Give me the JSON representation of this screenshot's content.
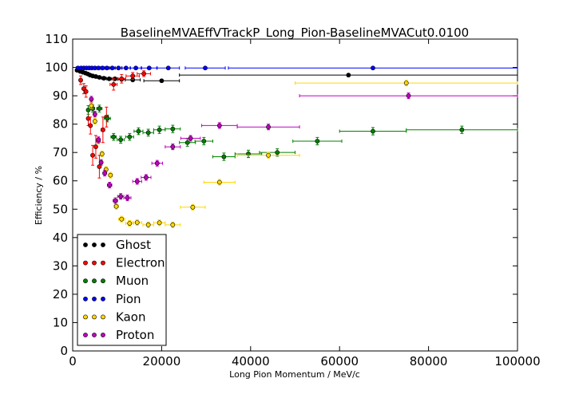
{
  "chart_data": {
    "type": "scatter",
    "title": "BaselineMVAEffVTrackP_Long_Pion-BaselineMVACut0.0100",
    "xlabel": "Long Pion Momentum / MeV/c",
    "ylabel": "Efficiency / %",
    "xlim": [
      0,
      100000
    ],
    "ylim": [
      0,
      110
    ],
    "x_ticks": [
      "0",
      "20000",
      "40000",
      "60000",
      "80000",
      "100000"
    ],
    "y_ticks": [
      "0",
      "10",
      "20",
      "30",
      "40",
      "50",
      "60",
      "70",
      "80",
      "90",
      "100",
      "110"
    ],
    "grid": false,
    "legend_position": "bottom-left",
    "series": [
      {
        "name": "Ghost",
        "color": "#000000",
        "points": [
          {
            "x": 1000,
            "y": 99,
            "xerr": 400,
            "yerr": 0.3
          },
          {
            "x": 1700,
            "y": 98.6,
            "xerr": 300,
            "yerr": 0.3
          },
          {
            "x": 2300,
            "y": 98.3,
            "xerr": 300,
            "yerr": 0.3
          },
          {
            "x": 2900,
            "y": 98,
            "xerr": 300,
            "yerr": 0.3
          },
          {
            "x": 3400,
            "y": 97.7,
            "xerr": 250,
            "yerr": 0.3
          },
          {
            "x": 3900,
            "y": 97.3,
            "xerr": 250,
            "yerr": 0.3
          },
          {
            "x": 4500,
            "y": 97,
            "xerr": 300,
            "yerr": 0.3
          },
          {
            "x": 5200,
            "y": 96.8,
            "xerr": 350,
            "yerr": 0.3
          },
          {
            "x": 6000,
            "y": 96.5,
            "xerr": 400,
            "yerr": 0.3
          },
          {
            "x": 7000,
            "y": 96.2,
            "xerr": 500,
            "yerr": 0.4
          },
          {
            "x": 8200,
            "y": 96,
            "xerr": 600,
            "yerr": 0.4
          },
          {
            "x": 9500,
            "y": 96,
            "xerr": 700,
            "yerr": 0.4
          },
          {
            "x": 11000,
            "y": 95.8,
            "xerr": 800,
            "yerr": 0.4
          },
          {
            "x": 13500,
            "y": 95.6,
            "xerr": 1700,
            "yerr": 0.5
          },
          {
            "x": 20000,
            "y": 95.3,
            "xerr": 4000,
            "yerr": 0.5
          },
          {
            "x": 62000,
            "y": 97.3,
            "xerr": 38000,
            "yerr": 0.5
          }
        ]
      },
      {
        "name": "Electron",
        "color": "#ff0000",
        "points": [
          {
            "x": 1800,
            "y": 95.5,
            "xerr": 300,
            "yerr": 1.5
          },
          {
            "x": 2500,
            "y": 92.5,
            "xerr": 300,
            "yerr": 1.8
          },
          {
            "x": 3000,
            "y": 91.5,
            "xerr": 250,
            "yerr": 2.0
          },
          {
            "x": 3500,
            "y": 82,
            "xerr": 250,
            "yerr": 2.5
          },
          {
            "x": 4000,
            "y": 79.5,
            "xerr": 250,
            "yerr": 3.0
          },
          {
            "x": 4500,
            "y": 69,
            "xerr": 250,
            "yerr": 3.5
          },
          {
            "x": 5200,
            "y": 72,
            "xerr": 300,
            "yerr": 4.0
          },
          {
            "x": 6000,
            "y": 65,
            "xerr": 350,
            "yerr": 4.0
          },
          {
            "x": 6800,
            "y": 78,
            "xerr": 400,
            "yerr": 4.5
          },
          {
            "x": 7600,
            "y": 82.5,
            "xerr": 400,
            "yerr": 3.5
          },
          {
            "x": 9200,
            "y": 94,
            "xerr": 800,
            "yerr": 2.0
          },
          {
            "x": 11000,
            "y": 96,
            "xerr": 900,
            "yerr": 1.5
          },
          {
            "x": 13500,
            "y": 97,
            "xerr": 1500,
            "yerr": 1.2
          },
          {
            "x": 16000,
            "y": 97.8,
            "xerr": 1500,
            "yerr": 1.0
          }
        ]
      },
      {
        "name": "Muon",
        "color": "#008000",
        "points": [
          {
            "x": 3500,
            "y": 85,
            "xerr": 300,
            "yerr": 1.5
          },
          {
            "x": 4500,
            "y": 85.5,
            "xerr": 400,
            "yerr": 1.2
          },
          {
            "x": 6000,
            "y": 85.5,
            "xerr": 600,
            "yerr": 1.2
          },
          {
            "x": 7800,
            "y": 82,
            "xerr": 700,
            "yerr": 1.2
          },
          {
            "x": 9200,
            "y": 75.5,
            "xerr": 600,
            "yerr": 1.2
          },
          {
            "x": 10800,
            "y": 74.5,
            "xerr": 800,
            "yerr": 1.2
          },
          {
            "x": 12800,
            "y": 75.5,
            "xerr": 900,
            "yerr": 1.2
          },
          {
            "x": 14800,
            "y": 77.5,
            "xerr": 1000,
            "yerr": 1.2
          },
          {
            "x": 17000,
            "y": 77,
            "xerr": 1200,
            "yerr": 1.2
          },
          {
            "x": 19500,
            "y": 78,
            "xerr": 1300,
            "yerr": 1.3
          },
          {
            "x": 22500,
            "y": 78.3,
            "xerr": 1700,
            "yerr": 1.3
          },
          {
            "x": 25800,
            "y": 73.5,
            "xerr": 1800,
            "yerr": 1.3
          },
          {
            "x": 29500,
            "y": 74,
            "xerr": 2000,
            "yerr": 1.3
          },
          {
            "x": 34000,
            "y": 68.5,
            "xerr": 2500,
            "yerr": 1.3
          },
          {
            "x": 39500,
            "y": 69.5,
            "xerr": 3000,
            "yerr": 1.3
          },
          {
            "x": 46000,
            "y": 70,
            "xerr": 4000,
            "yerr": 1.3
          },
          {
            "x": 55000,
            "y": 74,
            "xerr": 5500,
            "yerr": 1.3
          },
          {
            "x": 67500,
            "y": 77.5,
            "xerr": 7500,
            "yerr": 1.3
          },
          {
            "x": 87500,
            "y": 78,
            "xerr": 12500,
            "yerr": 1.3
          }
        ]
      },
      {
        "name": "Pion",
        "color": "#0000ff",
        "points": [
          {
            "x": 1200,
            "y": 99.8,
            "xerr": 400,
            "yerr": 0.1
          },
          {
            "x": 1900,
            "y": 99.8,
            "xerr": 300,
            "yerr": 0.1
          },
          {
            "x": 2500,
            "y": 99.8,
            "xerr": 300,
            "yerr": 0.1
          },
          {
            "x": 3100,
            "y": 99.8,
            "xerr": 300,
            "yerr": 0.1
          },
          {
            "x": 3700,
            "y": 99.8,
            "xerr": 300,
            "yerr": 0.1
          },
          {
            "x": 4300,
            "y": 99.8,
            "xerr": 300,
            "yerr": 0.1
          },
          {
            "x": 5000,
            "y": 99.8,
            "xerr": 350,
            "yerr": 0.1
          },
          {
            "x": 5800,
            "y": 99.8,
            "xerr": 400,
            "yerr": 0.1
          },
          {
            "x": 6700,
            "y": 99.8,
            "xerr": 450,
            "yerr": 0.1
          },
          {
            "x": 7700,
            "y": 99.8,
            "xerr": 500,
            "yerr": 0.1
          },
          {
            "x": 8900,
            "y": 99.8,
            "xerr": 600,
            "yerr": 0.1
          },
          {
            "x": 10300,
            "y": 99.8,
            "xerr": 700,
            "yerr": 0.1
          },
          {
            "x": 12000,
            "y": 99.8,
            "xerr": 900,
            "yerr": 0.1
          },
          {
            "x": 14200,
            "y": 99.8,
            "xerr": 1200,
            "yerr": 0.1
          },
          {
            "x": 17200,
            "y": 99.8,
            "xerr": 1700,
            "yerr": 0.1
          },
          {
            "x": 21500,
            "y": 99.8,
            "xerr": 2500,
            "yerr": 0.1
          },
          {
            "x": 29800,
            "y": 99.8,
            "xerr": 4500,
            "yerr": 0.1
          },
          {
            "x": 67500,
            "y": 99.8,
            "xerr": 32500,
            "yerr": 0.1
          }
        ]
      },
      {
        "name": "Kaon",
        "color": "#ffd700",
        "points": [
          {
            "x": 4200,
            "y": 86.5,
            "xerr": 300,
            "yerr": 1.0
          },
          {
            "x": 5000,
            "y": 81,
            "xerr": 300,
            "yerr": 1.0
          },
          {
            "x": 5800,
            "y": 74,
            "xerr": 300,
            "yerr": 1.0
          },
          {
            "x": 6600,
            "y": 69.5,
            "xerr": 350,
            "yerr": 1.0
          },
          {
            "x": 7500,
            "y": 64,
            "xerr": 400,
            "yerr": 1.0
          },
          {
            "x": 8500,
            "y": 62,
            "xerr": 450,
            "yerr": 1.0
          },
          {
            "x": 9800,
            "y": 51,
            "xerr": 500,
            "yerr": 1.0
          },
          {
            "x": 11000,
            "y": 46.5,
            "xerr": 700,
            "yerr": 1.0
          },
          {
            "x": 12800,
            "y": 45,
            "xerr": 900,
            "yerr": 1.0
          },
          {
            "x": 14500,
            "y": 45.3,
            "xerr": 1000,
            "yerr": 1.0
          },
          {
            "x": 17000,
            "y": 44.5,
            "xerr": 1200,
            "yerr": 1.0
          },
          {
            "x": 19500,
            "y": 45.2,
            "xerr": 1300,
            "yerr": 1.0
          },
          {
            "x": 22500,
            "y": 44.5,
            "xerr": 1700,
            "yerr": 1.0
          },
          {
            "x": 27000,
            "y": 50.7,
            "xerr": 2800,
            "yerr": 1.0
          },
          {
            "x": 33000,
            "y": 59.5,
            "xerr": 3500,
            "yerr": 1.0
          },
          {
            "x": 44000,
            "y": 69,
            "xerr": 7000,
            "yerr": 1.0
          },
          {
            "x": 75000,
            "y": 94.5,
            "xerr": 25000,
            "yerr": 1.0
          }
        ]
      },
      {
        "name": "Proton",
        "color": "#bf00bf",
        "points": [
          {
            "x": 4200,
            "y": 88.8,
            "xerr": 300,
            "yerr": 1.0
          },
          {
            "x": 5000,
            "y": 83.5,
            "xerr": 300,
            "yerr": 1.0
          },
          {
            "x": 5800,
            "y": 74.5,
            "xerr": 350,
            "yerr": 1.0
          },
          {
            "x": 6400,
            "y": 66.5,
            "xerr": 350,
            "yerr": 1.0
          },
          {
            "x": 7200,
            "y": 62.7,
            "xerr": 400,
            "yerr": 1.0
          },
          {
            "x": 8300,
            "y": 58.5,
            "xerr": 500,
            "yerr": 1.0
          },
          {
            "x": 9600,
            "y": 53,
            "xerr": 500,
            "yerr": 1.0
          },
          {
            "x": 10800,
            "y": 54.5,
            "xerr": 700,
            "yerr": 1.0
          },
          {
            "x": 12300,
            "y": 54,
            "xerr": 800,
            "yerr": 1.0
          },
          {
            "x": 14500,
            "y": 59.8,
            "xerr": 1000,
            "yerr": 1.0
          },
          {
            "x": 16500,
            "y": 61.2,
            "xerr": 1100,
            "yerr": 1.0
          },
          {
            "x": 19000,
            "y": 66.2,
            "xerr": 1200,
            "yerr": 1.0
          },
          {
            "x": 22500,
            "y": 72,
            "xerr": 1700,
            "yerr": 1.0
          },
          {
            "x": 26500,
            "y": 75,
            "xerr": 2200,
            "yerr": 1.0
          },
          {
            "x": 33000,
            "y": 79.5,
            "xerr": 4000,
            "yerr": 1.0
          },
          {
            "x": 44000,
            "y": 79,
            "xerr": 7000,
            "yerr": 1.0
          },
          {
            "x": 75500,
            "y": 90,
            "xerr": 24500,
            "yerr": 1.0
          }
        ]
      }
    ]
  }
}
